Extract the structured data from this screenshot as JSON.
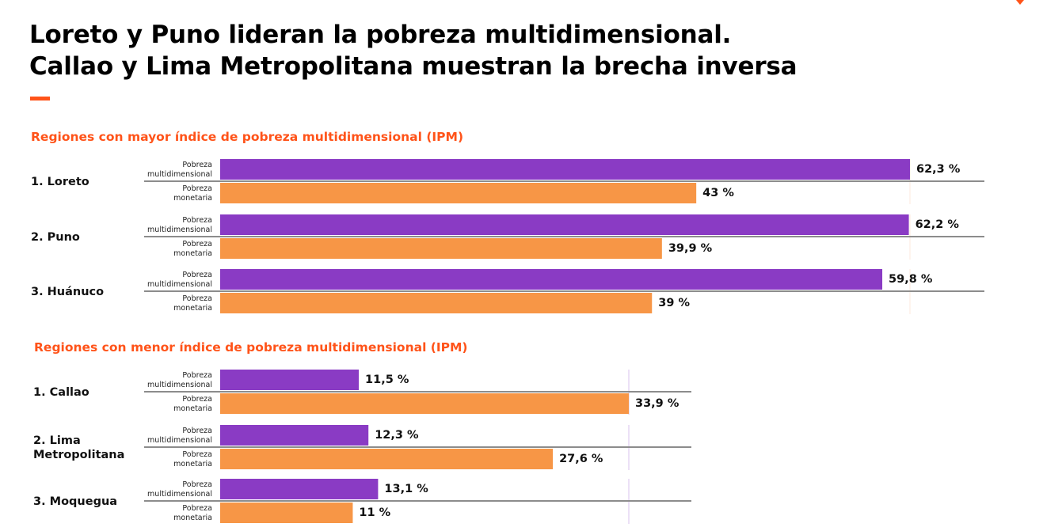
{
  "title": {
    "line1": "Loreto y Puno lideran la pobreza multidimensional.",
    "line2": "Callao y Lima Metropolitana muestran la brecha inversa"
  },
  "colors": {
    "accent": "#FF5319",
    "multidimensional": "#8A3BC4",
    "monetaria": "#F79646",
    "baseline": "#8C8C8C"
  },
  "chart_data": [
    {
      "type": "bar",
      "orientation": "horizontal",
      "title": "Regiones con mayor índice de pobreza multidimensional (IPM)",
      "categories": [
        "1. Loreto",
        "2. Puno",
        "3. Huánuco"
      ],
      "series": [
        {
          "name": "Pobreza multidimensional",
          "values": [
            62.3,
            62.2,
            59.8
          ]
        },
        {
          "name": "Pobreza monetaria",
          "values": [
            43,
            39.9,
            39
          ]
        }
      ],
      "value_labels": [
        [
          "62,3 %",
          "62,2 %",
          "59,8 %"
        ],
        [
          "43 %",
          "39,9 %",
          "39 %"
        ]
      ],
      "xlim": [
        0,
        62.3
      ],
      "unit": "%"
    },
    {
      "type": "bar",
      "orientation": "horizontal",
      "title": "Regiones con menor índice de pobreza multidimensional (IPM)",
      "categories": [
        "1. Callao",
        "2. Lima Metropolitana",
        "3. Moquegua"
      ],
      "series": [
        {
          "name": "Pobreza multidimensional",
          "values": [
            11.5,
            12.3,
            13.1
          ]
        },
        {
          "name": "Pobreza monetaria",
          "values": [
            33.9,
            27.6,
            11
          ]
        }
      ],
      "value_labels": [
        [
          "11,5 %",
          "12,3 %",
          "13,1 %"
        ],
        [
          "33,9 %",
          "27,6 %",
          "11 %"
        ]
      ],
      "xlim": [
        0,
        33.9
      ],
      "unit": "%"
    }
  ],
  "bar_category_labels": {
    "multidimensional": [
      "Pobreza",
      "multidimensional"
    ],
    "monetaria": [
      "Pobreza",
      "monetaria"
    ]
  }
}
